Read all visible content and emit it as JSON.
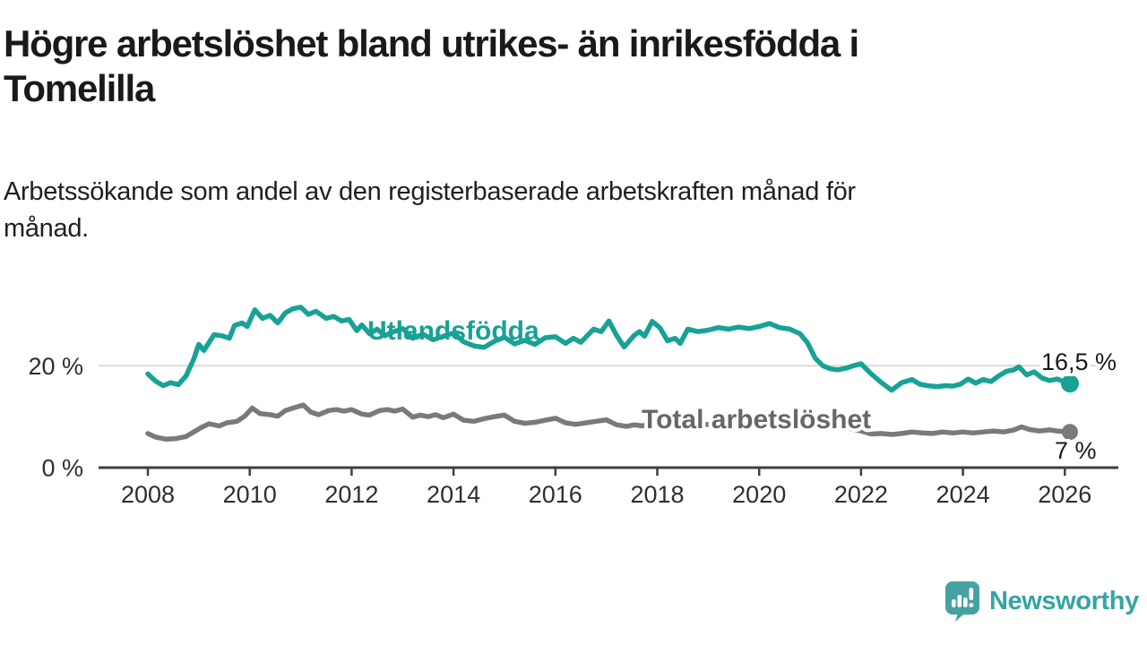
{
  "header": {
    "title_line1": "Högre arbetslöshet bland utrikes- än inrikesfödda i",
    "title_line2": "Tomelilla",
    "subtitle_line1": "Arbetssökande som andel av den registerbaserade arbetskraften månad för",
    "subtitle_line2": "månad."
  },
  "branding": {
    "logo_text": "Newsworthy",
    "logo_color": "#35a5a1",
    "logo_icon": "speech-bubble-bar-chart",
    "logo_icon_color": "#46a2a2"
  },
  "chart_data": {
    "type": "line",
    "title": "Högre arbetslöshet bland utrikes- än inrikesfödda i Tomelilla",
    "subtitle": "Arbetssökande som andel av den registerbaserade arbetskraften månad för månad.",
    "xlabel": "",
    "ylabel": "",
    "x_ticks": [
      2008,
      2010,
      2012,
      2014,
      2016,
      2018,
      2020,
      2022,
      2024,
      2026
    ],
    "x_range": [
      2008,
      2026.1
    ],
    "y_range": [
      0,
      32
    ],
    "grid": "single-line-at-20",
    "y_gridlines": [
      20
    ],
    "y_axis_labels": [
      {
        "value": 0,
        "text": "0 %"
      },
      {
        "value": 20,
        "text": "20 %"
      }
    ],
    "axis_color": "#3f3f3f",
    "gridline_color": "#d9d9d9",
    "legend_position": "inline-labels-on-lines",
    "series": [
      {
        "id": "utlandsfodda",
        "name": "Utlandsfödda",
        "color": "#17a295",
        "end_value": 16.5,
        "end_value_label": "16,5 %",
        "points": [
          [
            2008.0,
            18.4
          ],
          [
            2008.15,
            17.0
          ],
          [
            2008.3,
            16.1
          ],
          [
            2008.45,
            16.7
          ],
          [
            2008.6,
            16.3
          ],
          [
            2008.75,
            18.0
          ],
          [
            2008.9,
            21.3
          ],
          [
            2009.0,
            24.2
          ],
          [
            2009.1,
            23.0
          ],
          [
            2009.3,
            26.1
          ],
          [
            2009.45,
            25.9
          ],
          [
            2009.6,
            25.4
          ],
          [
            2009.7,
            27.9
          ],
          [
            2009.85,
            28.4
          ],
          [
            2009.95,
            27.7
          ],
          [
            2010.1,
            31.0
          ],
          [
            2010.25,
            29.3
          ],
          [
            2010.4,
            29.9
          ],
          [
            2010.55,
            28.4
          ],
          [
            2010.7,
            30.4
          ],
          [
            2010.85,
            31.2
          ],
          [
            2011.0,
            31.5
          ],
          [
            2011.15,
            30.1
          ],
          [
            2011.3,
            30.7
          ],
          [
            2011.5,
            29.3
          ],
          [
            2011.65,
            29.7
          ],
          [
            2011.8,
            28.8
          ],
          [
            2011.95,
            29.1
          ],
          [
            2012.1,
            26.9
          ],
          [
            2012.2,
            28.0
          ],
          [
            2012.35,
            26.3
          ],
          [
            2012.5,
            27.2
          ],
          [
            2012.65,
            25.9
          ],
          [
            2012.8,
            26.6
          ],
          [
            2013.0,
            27.3
          ],
          [
            2013.2,
            25.4
          ],
          [
            2013.4,
            26.2
          ],
          [
            2013.6,
            25.1
          ],
          [
            2013.8,
            25.8
          ],
          [
            2014.0,
            26.4
          ],
          [
            2014.2,
            24.7
          ],
          [
            2014.4,
            23.9
          ],
          [
            2014.6,
            23.6
          ],
          [
            2014.8,
            24.8
          ],
          [
            2015.0,
            25.6
          ],
          [
            2015.2,
            24.3
          ],
          [
            2015.4,
            25.0
          ],
          [
            2015.6,
            24.2
          ],
          [
            2015.8,
            25.5
          ],
          [
            2016.0,
            25.7
          ],
          [
            2016.2,
            24.4
          ],
          [
            2016.35,
            25.4
          ],
          [
            2016.5,
            24.6
          ],
          [
            2016.75,
            27.2
          ],
          [
            2016.9,
            26.7
          ],
          [
            2017.05,
            28.8
          ],
          [
            2017.2,
            26.0
          ],
          [
            2017.35,
            23.7
          ],
          [
            2017.55,
            26.0
          ],
          [
            2017.65,
            26.7
          ],
          [
            2017.75,
            25.8
          ],
          [
            2017.9,
            28.7
          ],
          [
            2018.05,
            27.5
          ],
          [
            2018.2,
            24.9
          ],
          [
            2018.35,
            25.4
          ],
          [
            2018.45,
            24.4
          ],
          [
            2018.6,
            27.2
          ],
          [
            2018.8,
            26.7
          ],
          [
            2019.0,
            27.0
          ],
          [
            2019.2,
            27.5
          ],
          [
            2019.4,
            27.2
          ],
          [
            2019.6,
            27.6
          ],
          [
            2019.8,
            27.3
          ],
          [
            2020.0,
            27.7
          ],
          [
            2020.2,
            28.3
          ],
          [
            2020.4,
            27.5
          ],
          [
            2020.6,
            27.2
          ],
          [
            2020.8,
            26.3
          ],
          [
            2020.95,
            24.5
          ],
          [
            2021.1,
            21.5
          ],
          [
            2021.25,
            20.0
          ],
          [
            2021.4,
            19.4
          ],
          [
            2021.55,
            19.2
          ],
          [
            2021.7,
            19.5
          ],
          [
            2021.85,
            20.0
          ],
          [
            2022.0,
            20.4
          ],
          [
            2022.2,
            18.4
          ],
          [
            2022.4,
            16.7
          ],
          [
            2022.6,
            15.2
          ],
          [
            2022.8,
            16.7
          ],
          [
            2023.0,
            17.3
          ],
          [
            2023.15,
            16.4
          ],
          [
            2023.3,
            16.1
          ],
          [
            2023.5,
            15.9
          ],
          [
            2023.65,
            16.1
          ],
          [
            2023.8,
            16.0
          ],
          [
            2023.95,
            16.4
          ],
          [
            2024.1,
            17.4
          ],
          [
            2024.25,
            16.6
          ],
          [
            2024.4,
            17.3
          ],
          [
            2024.55,
            16.9
          ],
          [
            2024.7,
            18.0
          ],
          [
            2024.85,
            18.9
          ],
          [
            2025.0,
            19.2
          ],
          [
            2025.1,
            19.8
          ],
          [
            2025.25,
            18.2
          ],
          [
            2025.4,
            18.8
          ],
          [
            2025.55,
            17.6
          ],
          [
            2025.7,
            17.1
          ],
          [
            2025.85,
            17.4
          ],
          [
            2026.0,
            16.8
          ],
          [
            2026.1,
            16.5
          ]
        ]
      },
      {
        "id": "total",
        "name": "Total arbetslöshet",
        "color": "#7a7a7e",
        "end_value": 7,
        "end_value_label": "7 %",
        "points": [
          [
            2008.0,
            6.7
          ],
          [
            2008.15,
            6.0
          ],
          [
            2008.35,
            5.6
          ],
          [
            2008.55,
            5.7
          ],
          [
            2008.75,
            6.1
          ],
          [
            2008.9,
            7.0
          ],
          [
            2009.05,
            7.9
          ],
          [
            2009.2,
            8.6
          ],
          [
            2009.4,
            8.2
          ],
          [
            2009.55,
            8.8
          ],
          [
            2009.75,
            9.1
          ],
          [
            2009.9,
            10.1
          ],
          [
            2010.05,
            11.7
          ],
          [
            2010.2,
            10.6
          ],
          [
            2010.4,
            10.4
          ],
          [
            2010.55,
            10.1
          ],
          [
            2010.7,
            11.2
          ],
          [
            2010.85,
            11.7
          ],
          [
            2011.05,
            12.3
          ],
          [
            2011.2,
            10.9
          ],
          [
            2011.35,
            10.4
          ],
          [
            2011.55,
            11.2
          ],
          [
            2011.7,
            11.4
          ],
          [
            2011.85,
            11.1
          ],
          [
            2012.0,
            11.4
          ],
          [
            2012.2,
            10.5
          ],
          [
            2012.35,
            10.3
          ],
          [
            2012.55,
            11.2
          ],
          [
            2012.7,
            11.4
          ],
          [
            2012.85,
            11.1
          ],
          [
            2013.0,
            11.5
          ],
          [
            2013.2,
            9.9
          ],
          [
            2013.35,
            10.3
          ],
          [
            2013.5,
            10.0
          ],
          [
            2013.65,
            10.4
          ],
          [
            2013.8,
            9.8
          ],
          [
            2014.0,
            10.5
          ],
          [
            2014.2,
            9.3
          ],
          [
            2014.4,
            9.1
          ],
          [
            2014.6,
            9.6
          ],
          [
            2014.8,
            10.0
          ],
          [
            2015.0,
            10.3
          ],
          [
            2015.2,
            9.1
          ],
          [
            2015.4,
            8.7
          ],
          [
            2015.6,
            8.9
          ],
          [
            2015.8,
            9.3
          ],
          [
            2016.0,
            9.7
          ],
          [
            2016.2,
            8.8
          ],
          [
            2016.4,
            8.5
          ],
          [
            2016.6,
            8.8
          ],
          [
            2016.8,
            9.1
          ],
          [
            2017.0,
            9.4
          ],
          [
            2017.2,
            8.4
          ],
          [
            2017.4,
            8.1
          ],
          [
            2017.55,
            8.4
          ],
          [
            2017.7,
            8.2
          ],
          [
            2017.9,
            8.6
          ],
          [
            2018.2,
            8.0
          ],
          [
            2018.5,
            8.2
          ],
          [
            2018.8,
            8.4
          ],
          [
            2019.0,
            8.5
          ],
          [
            2019.3,
            8.0
          ],
          [
            2019.6,
            8.2
          ],
          [
            2019.9,
            8.6
          ],
          [
            2020.2,
            9.5
          ],
          [
            2020.5,
            9.8
          ],
          [
            2020.8,
            9.4
          ],
          [
            2021.1,
            8.8
          ],
          [
            2021.4,
            8.2
          ],
          [
            2021.7,
            7.8
          ],
          [
            2022.0,
            7.2
          ],
          [
            2022.2,
            6.6
          ],
          [
            2022.4,
            6.7
          ],
          [
            2022.6,
            6.5
          ],
          [
            2022.8,
            6.7
          ],
          [
            2023.0,
            7.0
          ],
          [
            2023.2,
            6.8
          ],
          [
            2023.4,
            6.7
          ],
          [
            2023.6,
            7.0
          ],
          [
            2023.8,
            6.8
          ],
          [
            2024.0,
            7.0
          ],
          [
            2024.2,
            6.8
          ],
          [
            2024.4,
            7.0
          ],
          [
            2024.6,
            7.2
          ],
          [
            2024.8,
            7.0
          ],
          [
            2025.0,
            7.4
          ],
          [
            2025.15,
            8.0
          ],
          [
            2025.3,
            7.5
          ],
          [
            2025.5,
            7.2
          ],
          [
            2025.7,
            7.4
          ],
          [
            2025.85,
            7.2
          ],
          [
            2026.1,
            7.0
          ]
        ]
      }
    ]
  }
}
